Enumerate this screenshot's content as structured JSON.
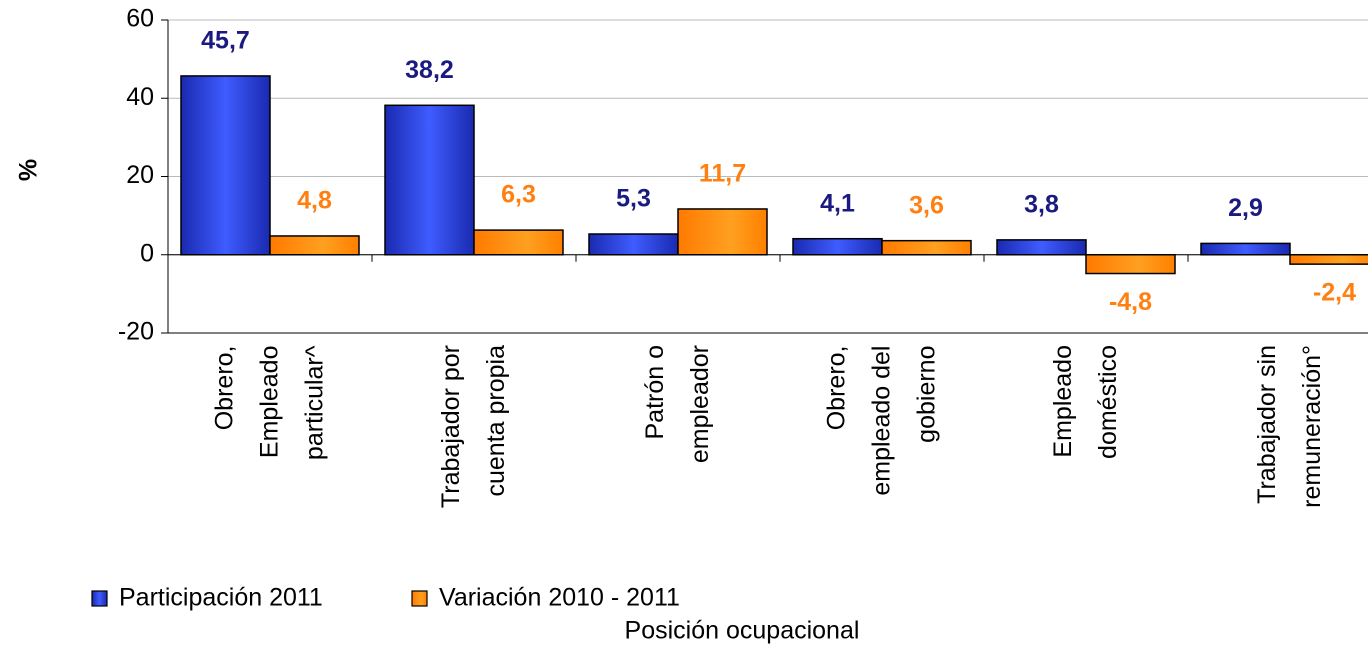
{
  "chart_data": {
    "type": "bar",
    "y_label": "%",
    "x_label": "Posición ocupacional",
    "categories": [
      "Obrero, Empleado particular^",
      "Trabajador por cuenta propia",
      "Patrón o empleador",
      "Obrero, empleado del gobierno",
      "Empleado doméstico",
      "Trabajador sin remuneración°"
    ],
    "series": [
      {
        "name": "Participación 2011",
        "color": "#2a40d8",
        "label_color": "#1a1a80",
        "values": [
          45.7,
          38.2,
          5.3,
          4.1,
          3.8,
          2.9
        ],
        "value_labels": [
          "45,7",
          "38,2",
          "5,3",
          "4,1",
          "3,8",
          "2,9"
        ]
      },
      {
        "name": "Variación 2010 - 2011",
        "color": "#ff8c00",
        "label_color": "#ff7f10",
        "values": [
          4.8,
          6.3,
          11.7,
          3.6,
          -4.8,
          -2.4
        ],
        "value_labels": [
          "4,8",
          "6,3",
          "11,7",
          "3,6",
          "-4,8",
          "-2,4"
        ]
      }
    ],
    "ylim": [
      -20,
      60
    ],
    "yticks": [
      -20,
      0,
      20,
      40,
      60
    ],
    "grid": true
  }
}
